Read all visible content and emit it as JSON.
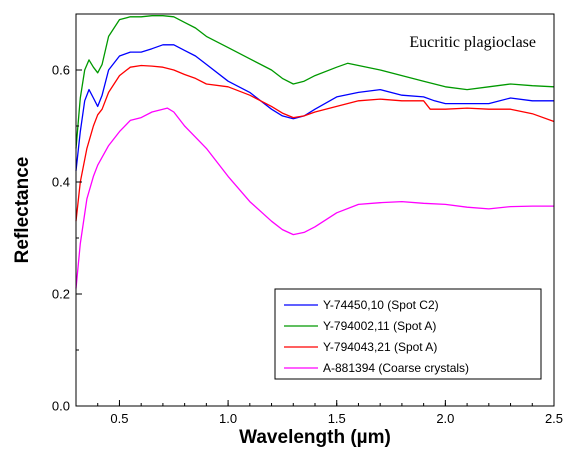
{
  "chart_data": {
    "type": "line",
    "title": "",
    "annotation": "Eucritic plagioclase",
    "xlabel": "Wavelength (µm)",
    "ylabel": "Reflectance",
    "xlim": [
      0.3,
      2.5
    ],
    "ylim": [
      0.0,
      0.7
    ],
    "xticks": [
      0.5,
      1.0,
      1.5,
      2.0,
      2.5
    ],
    "xtick_labels": [
      "0.5",
      "1.0",
      "1.5",
      "2.0",
      "2.5"
    ],
    "yticks": [
      0.0,
      0.2,
      0.4,
      0.6
    ],
    "ytick_labels": [
      "0.0",
      "0.2",
      "0.4",
      "0.6"
    ],
    "grid": false,
    "legend_position": "bottom-right",
    "series": [
      {
        "name": "Y-74450,10 (Spot C2)",
        "color": "#0000ff",
        "x": [
          0.3,
          0.32,
          0.34,
          0.36,
          0.38,
          0.4,
          0.42,
          0.45,
          0.5,
          0.55,
          0.6,
          0.65,
          0.7,
          0.75,
          0.8,
          0.85,
          0.9,
          1.0,
          1.1,
          1.2,
          1.25,
          1.3,
          1.35,
          1.4,
          1.5,
          1.6,
          1.7,
          1.8,
          1.9,
          1.95,
          2.0,
          2.1,
          2.2,
          2.3,
          2.4,
          2.5
        ],
        "y": [
          0.42,
          0.49,
          0.545,
          0.565,
          0.55,
          0.535,
          0.555,
          0.6,
          0.625,
          0.632,
          0.632,
          0.638,
          0.645,
          0.645,
          0.635,
          0.625,
          0.61,
          0.58,
          0.56,
          0.53,
          0.518,
          0.513,
          0.518,
          0.53,
          0.552,
          0.56,
          0.565,
          0.555,
          0.552,
          0.545,
          0.54,
          0.54,
          0.54,
          0.55,
          0.545,
          0.545
        ]
      },
      {
        "name": "Y-794002,11 (Spot A)",
        "color": "#009900",
        "x": [
          0.3,
          0.32,
          0.34,
          0.36,
          0.38,
          0.4,
          0.42,
          0.45,
          0.5,
          0.55,
          0.6,
          0.65,
          0.7,
          0.75,
          0.8,
          0.85,
          0.9,
          1.0,
          1.1,
          1.2,
          1.25,
          1.3,
          1.35,
          1.4,
          1.5,
          1.55,
          1.6,
          1.7,
          1.8,
          1.9,
          2.0,
          2.1,
          2.2,
          2.3,
          2.4,
          2.5
        ],
        "y": [
          0.46,
          0.55,
          0.6,
          0.618,
          0.605,
          0.595,
          0.61,
          0.66,
          0.69,
          0.695,
          0.695,
          0.697,
          0.697,
          0.695,
          0.685,
          0.675,
          0.66,
          0.64,
          0.62,
          0.6,
          0.585,
          0.575,
          0.58,
          0.59,
          0.605,
          0.612,
          0.608,
          0.6,
          0.59,
          0.58,
          0.57,
          0.565,
          0.57,
          0.575,
          0.572,
          0.57
        ]
      },
      {
        "name": "Y-794043,21 (Spot A)",
        "color": "#ff0000",
        "x": [
          0.3,
          0.32,
          0.35,
          0.38,
          0.4,
          0.42,
          0.45,
          0.5,
          0.55,
          0.6,
          0.65,
          0.7,
          0.75,
          0.8,
          0.85,
          0.9,
          1.0,
          1.1,
          1.2,
          1.25,
          1.3,
          1.35,
          1.4,
          1.5,
          1.6,
          1.7,
          1.8,
          1.9,
          1.93,
          2.0,
          2.1,
          2.2,
          2.3,
          2.4,
          2.5
        ],
        "y": [
          0.33,
          0.4,
          0.46,
          0.5,
          0.52,
          0.53,
          0.56,
          0.59,
          0.605,
          0.608,
          0.607,
          0.605,
          0.6,
          0.592,
          0.585,
          0.575,
          0.57,
          0.555,
          0.535,
          0.523,
          0.515,
          0.518,
          0.525,
          0.535,
          0.545,
          0.548,
          0.545,
          0.545,
          0.53,
          0.53,
          0.532,
          0.53,
          0.53,
          0.522,
          0.508
        ]
      },
      {
        "name": "A-881394 (Coarse crystals)",
        "color": "#ff00ff",
        "x": [
          0.3,
          0.32,
          0.35,
          0.38,
          0.4,
          0.45,
          0.5,
          0.55,
          0.6,
          0.65,
          0.7,
          0.72,
          0.75,
          0.8,
          0.85,
          0.9,
          1.0,
          1.1,
          1.2,
          1.25,
          1.3,
          1.35,
          1.4,
          1.5,
          1.6,
          1.7,
          1.8,
          1.9,
          2.0,
          2.1,
          2.2,
          2.3,
          2.4,
          2.5
        ],
        "y": [
          0.21,
          0.29,
          0.37,
          0.41,
          0.43,
          0.465,
          0.49,
          0.51,
          0.515,
          0.525,
          0.53,
          0.532,
          0.525,
          0.5,
          0.48,
          0.46,
          0.41,
          0.365,
          0.33,
          0.315,
          0.306,
          0.31,
          0.32,
          0.345,
          0.36,
          0.363,
          0.365,
          0.362,
          0.36,
          0.355,
          0.352,
          0.356,
          0.357,
          0.357
        ]
      }
    ]
  }
}
